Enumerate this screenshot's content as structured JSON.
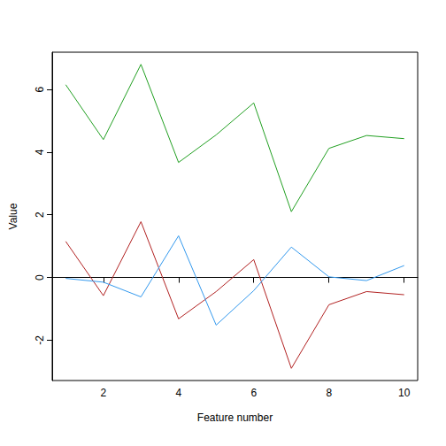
{
  "chart_data": {
    "type": "line",
    "x_label": "Feature number",
    "y_label": "Value",
    "x": [
      1,
      2,
      3,
      4,
      5,
      6,
      7,
      8,
      9,
      10
    ],
    "series": [
      {
        "color": "#22a022",
        "values": [
          6.15,
          4.4,
          6.8,
          3.67,
          4.55,
          5.57,
          2.1,
          4.12,
          4.53,
          4.43
        ]
      },
      {
        "color": "#b22222",
        "values": [
          1.15,
          -0.58,
          1.78,
          -1.32,
          -0.45,
          0.57,
          -2.9,
          -0.87,
          -0.45,
          -0.55
        ]
      },
      {
        "color": "#3399ee",
        "values": [
          -0.03,
          -0.15,
          -0.62,
          1.33,
          -1.52,
          -0.42,
          0.97,
          0.02,
          -0.1,
          0.38
        ]
      }
    ],
    "xlim": [
      0.64,
      10.36
    ],
    "xticks": [
      2,
      4,
      6,
      8,
      10
    ],
    "ylim": [
      -3.288,
      7.188
    ],
    "yticks": [
      -2,
      0,
      2,
      4,
      6
    ],
    "grid": false,
    "line_style": "solid"
  }
}
